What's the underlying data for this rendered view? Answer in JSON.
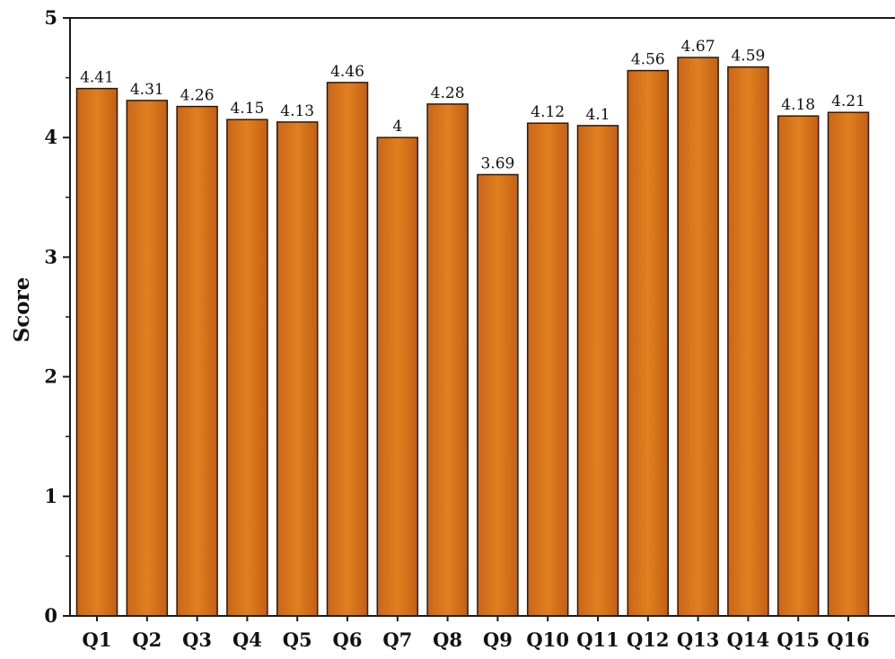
{
  "chart_data": {
    "type": "bar",
    "title": "",
    "xlabel": "",
    "ylabel": "Score",
    "ylim": [
      0,
      5
    ],
    "yticks": [
      "0",
      "1",
      "2",
      "3",
      "4",
      "5"
    ],
    "grid": false,
    "categories": [
      "Q1",
      "Q2",
      "Q3",
      "Q4",
      "Q5",
      "Q6",
      "Q7",
      "Q8",
      "Q9",
      "Q10",
      "Q11",
      "Q12",
      "Q13",
      "Q14",
      "Q15",
      "Q16"
    ],
    "values": [
      4.41,
      4.31,
      4.26,
      4.15,
      4.13,
      4.46,
      4,
      4.28,
      3.69,
      4.12,
      4.1,
      4.56,
      4.67,
      4.59,
      4.18,
      4.21
    ],
    "data_labels": [
      "4.41",
      "4.31",
      "4.26",
      "4.15",
      "4.13",
      "4.46",
      "4",
      "4.28",
      "3.69",
      "4.12",
      "4.1",
      "4.56",
      "4.67",
      "4.59",
      "4.18",
      "4.21"
    ],
    "colors": {
      "bar_fill": "#d9741c",
      "bar_fill_light": "#e48a34",
      "bar_edge": "#2a1a0c",
      "axis": "#1a1a1a"
    }
  }
}
